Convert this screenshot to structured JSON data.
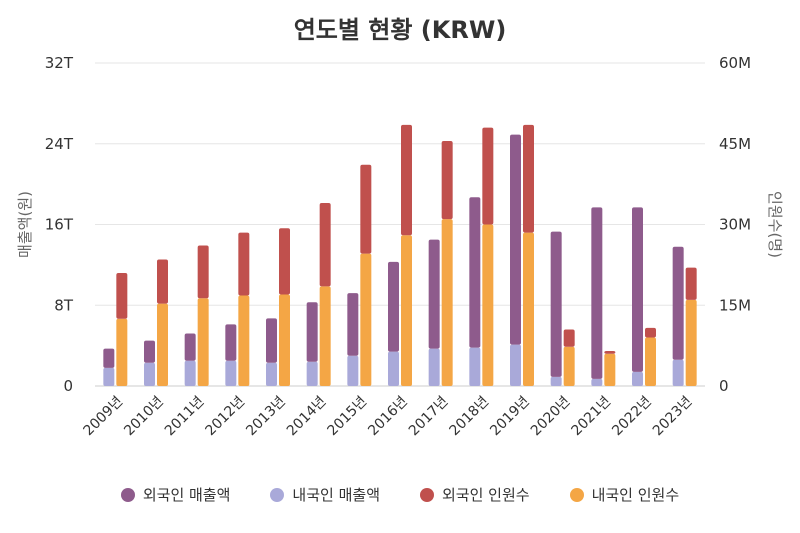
{
  "chart_data": {
    "type": "bar",
    "title": "연도별 현황 (KRW)",
    "categories": [
      "2009년",
      "2010년",
      "2011년",
      "2012년",
      "2013년",
      "2014년",
      "2015년",
      "2016년",
      "2017년",
      "2018년",
      "2019년",
      "2020년",
      "2021년",
      "2022년",
      "2023년"
    ],
    "y_left": {
      "label": "매출액(원)",
      "ticks": [
        "0",
        "8T",
        "16T",
        "24T",
        "32T"
      ],
      "range": [
        0,
        32
      ],
      "unit": "T"
    },
    "y_right": {
      "label": "인원수(명)",
      "ticks": [
        "0",
        "15M",
        "30M",
        "45M",
        "60M"
      ],
      "range": [
        0,
        60
      ],
      "unit": "M"
    },
    "stacks": [
      {
        "axis": "left",
        "series": [
          {
            "name": "내국인 매출액",
            "color": "#a9a9d9",
            "values": [
              1.8,
              2.3,
              2.5,
              2.5,
              2.3,
              2.4,
              3.0,
              3.4,
              3.7,
              3.8,
              4.1,
              0.9,
              0.7,
              1.4,
              2.6
            ]
          },
          {
            "name": "외국인 매출액",
            "color": "#8e5b8c",
            "values": [
              1.9,
              2.2,
              2.7,
              3.6,
              4.4,
              5.9,
              6.2,
              8.9,
              10.8,
              14.9,
              20.8,
              14.4,
              17.0,
              16.3,
              11.2
            ]
          }
        ]
      },
      {
        "axis": "right",
        "series": [
          {
            "name": "내국인 인원수",
            "color": "#f4a645",
            "values": [
              12.5,
              15.3,
              16.3,
              16.8,
              17.0,
              18.5,
              24.6,
              28.0,
              31.0,
              30.0,
              28.5,
              7.3,
              6.0,
              9.0,
              16.0
            ]
          },
          {
            "name": "외국인 인원수",
            "color": "#c0504d",
            "values": [
              8.5,
              8.2,
              9.8,
              11.7,
              12.3,
              15.5,
              16.5,
              20.5,
              14.5,
              18.0,
              20.0,
              3.2,
              0.5,
              1.8,
              6.0
            ]
          }
        ]
      }
    ],
    "legend": [
      {
        "name": "외국인 매출액",
        "color": "#8e5b8c"
      },
      {
        "name": "내국인 매출액",
        "color": "#a9a9d9"
      },
      {
        "name": "외국인 인원수",
        "color": "#c0504d"
      },
      {
        "name": "내국인 인원수",
        "color": "#f4a645"
      }
    ],
    "legend_position": "bottom",
    "grid": true
  }
}
